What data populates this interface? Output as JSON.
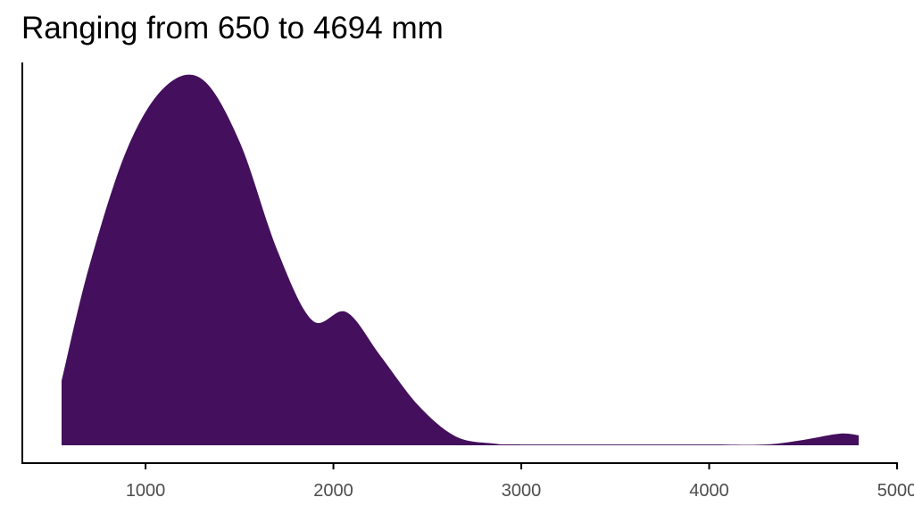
{
  "chart_data": {
    "type": "area",
    "title": "Ranging from 650 to 4694 mm",
    "xlabel": "",
    "ylabel": "",
    "xlim": [
      344,
      5000
    ],
    "ylim": [
      0,
      0.00092
    ],
    "x_ticks": [
      1000,
      2000,
      3000,
      4000,
      5000
    ],
    "x_tick_labels": [
      "1000",
      "2000",
      "3000",
      "4000",
      "5000"
    ],
    "y_ticks": [],
    "grid": false,
    "fill_color": "#440F5C",
    "series": [
      {
        "x": [
          553,
          700,
          900,
          1100,
          1300,
          1500,
          1700,
          1888,
          2069,
          2250,
          2450,
          2650,
          2850,
          3000,
          3500,
          4000,
          4300,
          4500,
          4694,
          4796
        ],
        "y": [
          0.000155,
          0.00043,
          0.00071,
          0.00086,
          0.00088,
          0.00073,
          0.00047,
          0.0003,
          0.00032,
          0.000215,
          9.68e-05,
          2.15e-05,
          4.3e-06,
          2e-06,
          2e-06,
          2e-06,
          2e-06,
          1.3e-05,
          2.8e-05,
          2.4e-05
        ]
      }
    ]
  }
}
